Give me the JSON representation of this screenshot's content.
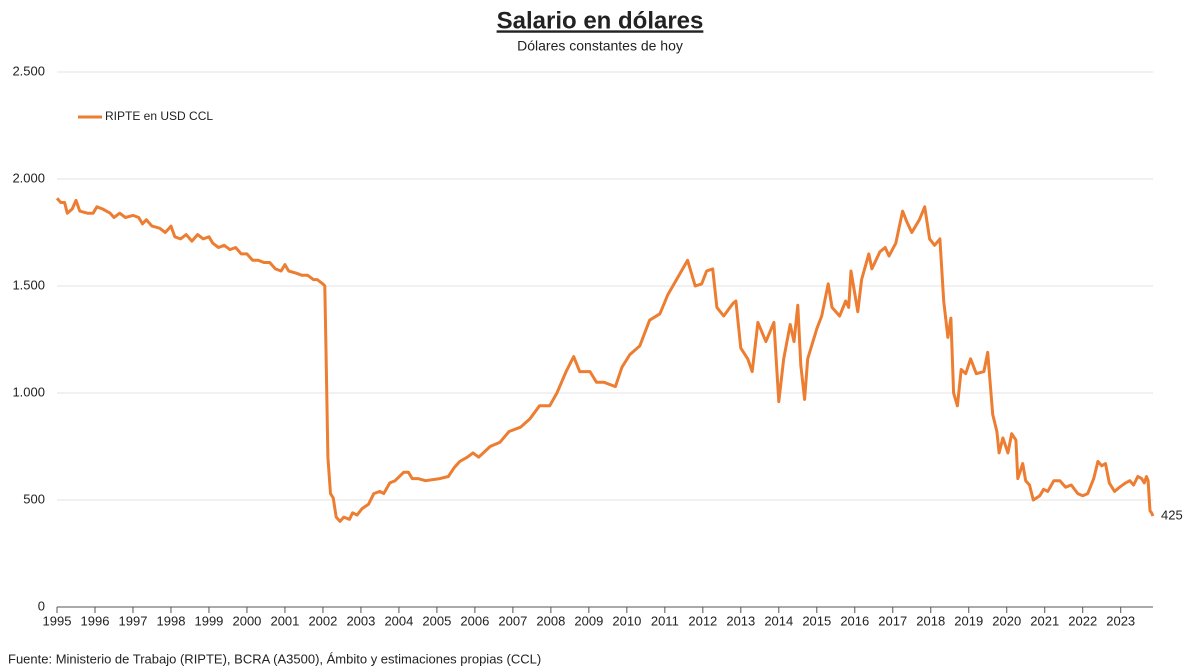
{
  "chart_data": {
    "type": "line",
    "title": "Salario en dólares",
    "subtitle": "Dólares constantes de hoy",
    "source": "Fuente: Ministerio de Trabajo (RIPTE), BCRA (A3500), Ámbito y estimaciones propias (CCL)",
    "legend": "top-left",
    "grid": true,
    "xlim": [
      1995,
      2023.85
    ],
    "xticks": [
      1995,
      1996,
      1997,
      1998,
      1999,
      2000,
      2001,
      2002,
      2003,
      2004,
      2005,
      2006,
      2007,
      2008,
      2009,
      2010,
      2011,
      2012,
      2013,
      2014,
      2015,
      2016,
      2017,
      2018,
      2019,
      2020,
      2021,
      2022,
      2023
    ],
    "ylim": [
      0,
      2500
    ],
    "yticks": [
      {
        "value": 0,
        "label": "0"
      },
      {
        "value": 500,
        "label": "500"
      },
      {
        "value": 1000,
        "label": "1.000"
      },
      {
        "value": 1500,
        "label": "1.500"
      },
      {
        "value": 2000,
        "label": "2.000"
      },
      {
        "value": 2500,
        "label": "2.500"
      }
    ],
    "x": [
      1995.0,
      1995.1,
      1995.2,
      1995.27,
      1995.4,
      1995.5,
      1995.6,
      1995.8,
      1995.95,
      1996.05,
      1996.2,
      1996.4,
      1996.5,
      1996.65,
      1996.8,
      1997.0,
      1997.15,
      1997.25,
      1997.35,
      1997.5,
      1997.7,
      1997.85,
      1998.0,
      1998.1,
      1998.25,
      1998.4,
      1998.55,
      1998.7,
      1998.85,
      1999.0,
      1999.1,
      1999.25,
      1999.4,
      1999.55,
      1999.7,
      1999.85,
      2000.0,
      2000.15,
      2000.3,
      2000.45,
      2000.6,
      2000.75,
      2000.9,
      2001.0,
      2001.1,
      2001.3,
      2001.45,
      2001.6,
      2001.75,
      2001.85,
      2002.0,
      2002.05,
      2002.08,
      2002.13,
      2002.2,
      2002.27,
      2002.35,
      2002.45,
      2002.55,
      2002.7,
      2002.78,
      2002.9,
      2003.03,
      2003.2,
      2003.34,
      2003.5,
      2003.6,
      2003.76,
      2003.9,
      2004.13,
      2004.25,
      2004.35,
      2004.5,
      2004.7,
      2005.08,
      2005.3,
      2005.45,
      2005.6,
      2005.8,
      2005.95,
      2006.1,
      2006.4,
      2006.66,
      2006.9,
      2007.2,
      2007.45,
      2007.7,
      2007.97,
      2008.16,
      2008.4,
      2008.6,
      2008.76,
      2009.03,
      2009.2,
      2009.4,
      2009.7,
      2009.87,
      2010.08,
      2010.34,
      2010.6,
      2010.87,
      2011.08,
      2011.34,
      2011.6,
      2011.8,
      2011.97,
      2012.1,
      2012.26,
      2012.37,
      2012.55,
      2012.8,
      2012.87,
      2013.0,
      2013.18,
      2013.3,
      2013.45,
      2013.66,
      2013.87,
      2014.0,
      2014.13,
      2014.3,
      2014.4,
      2014.5,
      2014.58,
      2014.68,
      2014.76,
      2015.0,
      2015.13,
      2015.3,
      2015.4,
      2015.6,
      2015.76,
      2015.84,
      2015.9,
      2016.08,
      2016.18,
      2016.37,
      2016.45,
      2016.66,
      2016.8,
      2016.9,
      2017.08,
      2017.26,
      2017.37,
      2017.5,
      2017.7,
      2017.84,
      2017.97,
      2018.1,
      2018.24,
      2018.34,
      2018.45,
      2018.53,
      2018.6,
      2018.7,
      2018.8,
      2018.92,
      2019.05,
      2019.2,
      2019.4,
      2019.5,
      2019.63,
      2019.74,
      2019.8,
      2019.9,
      2020.03,
      2020.13,
      2020.24,
      2020.29,
      2020.42,
      2020.5,
      2020.6,
      2020.7,
      2020.87,
      2020.97,
      2021.08,
      2021.24,
      2021.4,
      2021.55,
      2021.7,
      2021.87,
      2022.0,
      2022.13,
      2022.29,
      2022.4,
      2022.5,
      2022.6,
      2022.7,
      2022.84,
      2022.97,
      2023.13,
      2023.24,
      2023.34,
      2023.45,
      2023.55,
      2023.62,
      2023.68,
      2023.72,
      2023.77,
      2023.81,
      2023.85
    ],
    "series": [
      {
        "name": "RIPTE en USD CCL",
        "color": "#ed7d31",
        "values": [
          1910,
          1890,
          1890,
          1840,
          1860,
          1900,
          1850,
          1840,
          1840,
          1870,
          1860,
          1840,
          1820,
          1840,
          1820,
          1830,
          1820,
          1790,
          1810,
          1780,
          1770,
          1750,
          1780,
          1730,
          1720,
          1740,
          1710,
          1740,
          1720,
          1730,
          1700,
          1680,
          1690,
          1670,
          1680,
          1650,
          1650,
          1620,
          1620,
          1610,
          1610,
          1580,
          1570,
          1600,
          1570,
          1560,
          1550,
          1550,
          1530,
          1530,
          1510,
          1500,
          1200,
          700,
          530,
          510,
          420,
          400,
          420,
          410,
          440,
          430,
          460,
          480,
          530,
          540,
          530,
          580,
          590,
          630,
          630,
          600,
          600,
          590,
          600,
          610,
          650,
          680,
          700,
          720,
          700,
          750,
          770,
          820,
          840,
          880,
          940,
          940,
          1000,
          1100,
          1170,
          1100,
          1100,
          1050,
          1050,
          1030,
          1120,
          1180,
          1220,
          1340,
          1370,
          1460,
          1540,
          1620,
          1500,
          1510,
          1570,
          1580,
          1400,
          1360,
          1420,
          1430,
          1210,
          1160,
          1100,
          1330,
          1240,
          1330,
          960,
          1160,
          1320,
          1240,
          1410,
          1130,
          970,
          1160,
          1300,
          1360,
          1510,
          1400,
          1360,
          1430,
          1400,
          1570,
          1380,
          1530,
          1650,
          1580,
          1660,
          1680,
          1640,
          1700,
          1850,
          1800,
          1750,
          1810,
          1870,
          1720,
          1690,
          1720,
          1430,
          1260,
          1350,
          1000,
          940,
          1110,
          1090,
          1160,
          1090,
          1100,
          1190,
          900,
          820,
          720,
          790,
          720,
          810,
          780,
          600,
          670,
          590,
          570,
          500,
          520,
          550,
          540,
          590,
          590,
          560,
          570,
          530,
          520,
          530,
          600,
          680,
          660,
          670,
          580,
          540,
          560,
          580,
          590,
          570,
          610,
          600,
          580,
          610,
          590,
          450,
          440,
          425
        ]
      }
    ]
  }
}
